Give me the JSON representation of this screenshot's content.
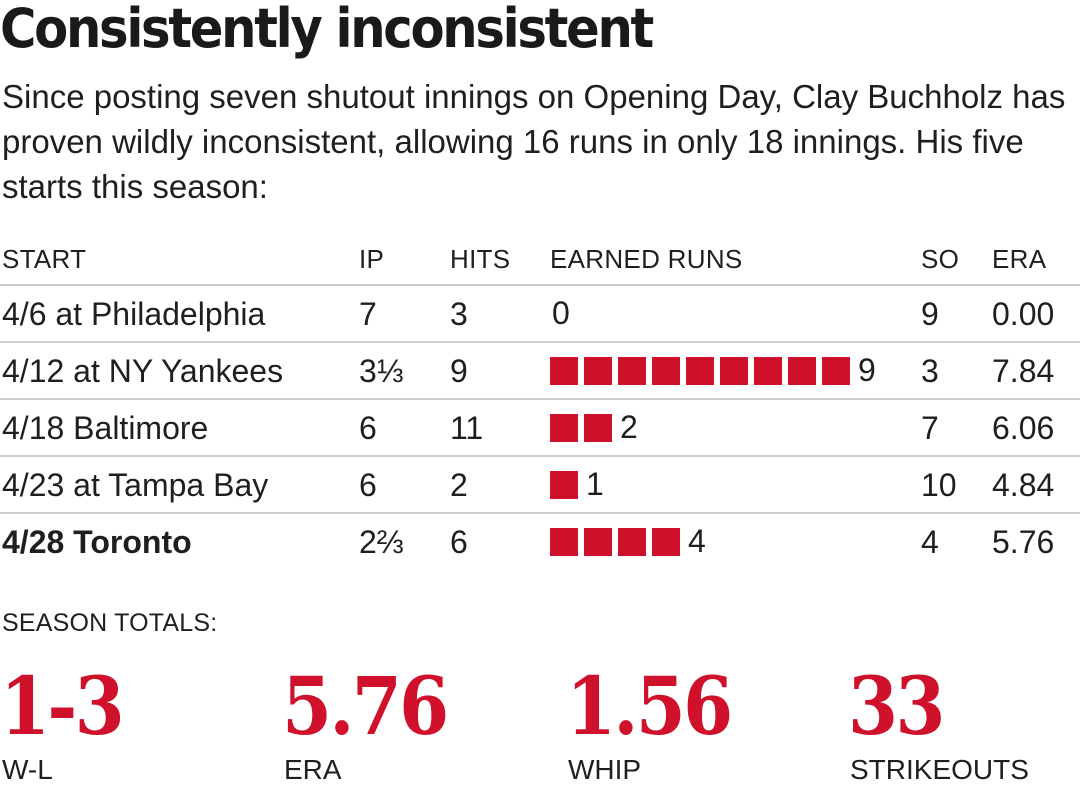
{
  "title": "Consistently inconsistent",
  "subtitle": "Since posting seven shutout innings on Opening Day, Clay Buchholz has proven wildly inconsistent, allowing 16 runs in only 18 innings. His five starts this season:",
  "colors": {
    "accent": "#d0112b",
    "text": "#1f1f1f",
    "rule": "#c9c9c9"
  },
  "chart_data": {
    "type": "table",
    "columns": [
      "START",
      "IP",
      "HITS",
      "EARNED RUNS",
      "SO",
      "ERA"
    ],
    "rows": [
      {
        "start": "4/6 at Philadelphia",
        "ip": "7",
        "hits": "3",
        "earned_runs": 0,
        "er_label": "0",
        "so": "9",
        "era": "0.00",
        "bold": false
      },
      {
        "start": "4/12 at NY Yankees",
        "ip": "3⅓",
        "hits": "9",
        "earned_runs": 9,
        "er_label": "9",
        "so": "3",
        "era": "7.84",
        "bold": false
      },
      {
        "start": "4/18 Baltimore",
        "ip": "6",
        "hits": "11",
        "earned_runs": 2,
        "er_label": "2",
        "so": "7",
        "era": "6.06",
        "bold": false
      },
      {
        "start": "4/23 at Tampa Bay",
        "ip": "6",
        "hits": "2",
        "earned_runs": 1,
        "er_label": "1",
        "so": "10",
        "era": "4.84",
        "bold": false
      },
      {
        "start": "4/28 Toronto",
        "ip": "2⅔",
        "hits": "6",
        "earned_runs": 4,
        "er_label": "4",
        "so": "4",
        "era": "5.76",
        "bold": true
      }
    ]
  },
  "totals": {
    "label": "SEASON TOTALS:",
    "stats": [
      {
        "value": "1-3",
        "label": "W-L"
      },
      {
        "value": "5.76",
        "label": "ERA"
      },
      {
        "value": "1.56",
        "label": "WHIP"
      },
      {
        "value": "33",
        "label": "STRIKEOUTS"
      }
    ]
  }
}
